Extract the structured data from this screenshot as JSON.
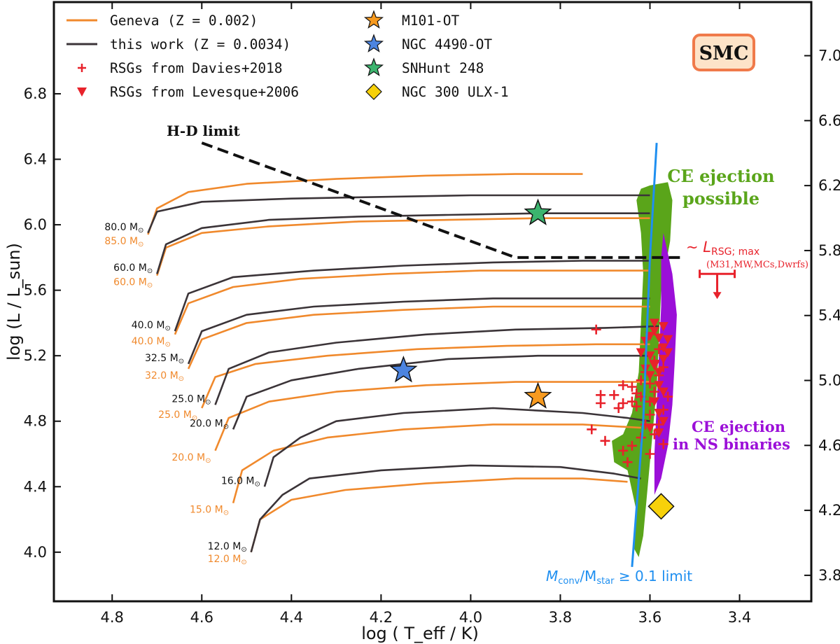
{
  "chart_data": {
    "type": "line",
    "title": "",
    "xlabel": "log ( T_eff / K)",
    "ylabel": "log (L / L_sun)",
    "xlim": [
      4.93,
      3.24
    ],
    "ylim": [
      3.7,
      7.36
    ],
    "xticks": [
      4.8,
      4.6,
      4.4,
      4.2,
      4.0,
      3.8,
      3.6,
      3.4
    ],
    "xtick_labels": [
      "4.8",
      "4.6",
      "4.4",
      "4.2",
      "4.0",
      "3.8",
      "3.6",
      "3.4"
    ],
    "yticks_left": [
      4.0,
      4.4,
      4.8,
      5.2,
      5.6,
      6.0,
      6.4,
      6.8
    ],
    "ytick_labels_left": [
      "4.0",
      "4.4",
      "4.8",
      "5.2",
      "5.6",
      "6.0",
      "6.4",
      "6.8"
    ],
    "yticks_right": [
      3.8,
      4.2,
      4.6,
      5.0,
      5.4,
      5.8,
      6.2,
      6.6,
      7.0
    ],
    "ytick_labels_right": [
      "3.8",
      "4.2",
      "4.6",
      "5.0",
      "5.4",
      "5.8",
      "6.2",
      "6.6",
      "7.0"
    ],
    "galaxy_label": "SMC",
    "colors": {
      "geneva": "#f0892c",
      "this_work": "#3b3438",
      "rsg": "#e8222b",
      "green_region": "#5aa51a",
      "purple_region": "#9b0fd8",
      "blue_limit": "#1f8ff0",
      "m101": "#f79a1f",
      "ngc4490": "#4c84e0",
      "snhunt": "#3cb46e",
      "ngc300": "#f7d10a",
      "smc_box_fill": "#fde3c8",
      "smc_box_stroke": "#f07a4a"
    },
    "legend": [
      {
        "label": "Geneva (Z = 0.002)",
        "marker": "line-orange"
      },
      {
        "label": "this work (Z = 0.0034)",
        "marker": "line-dark"
      },
      {
        "label": "RSGs from Davies+2018",
        "marker": "plus-red"
      },
      {
        "label": "RSGs from Levesque+2006",
        "marker": "triangle-red"
      },
      {
        "label": "M101-OT",
        "marker": "star-orange"
      },
      {
        "label": "NGC 4490-OT",
        "marker": "star-blue"
      },
      {
        "label": "SNHunt 248",
        "marker": "star-green"
      },
      {
        "label": "NGC 300 ULX-1",
        "marker": "diamond-yellow"
      }
    ],
    "transients": [
      {
        "name": "M101-OT",
        "x": 3.85,
        "y": 4.95,
        "marker": "star",
        "color": "#f79a1f"
      },
      {
        "name": "NGC 4490-OT",
        "x": 4.15,
        "y": 5.11,
        "marker": "star",
        "color": "#4c84e0"
      },
      {
        "name": "SNHunt 248",
        "x": 3.85,
        "y": 6.07,
        "marker": "star",
        "color": "#3cb46e"
      },
      {
        "name": "NGC 300 ULX-1",
        "x": 3.575,
        "y": 4.28,
        "marker": "diamond",
        "color": "#f7d10a"
      }
    ],
    "hd_limit": {
      "label": "H-D limit",
      "points": [
        [
          4.6,
          6.5
        ],
        [
          3.9,
          5.8
        ],
        [
          3.53,
          5.8
        ]
      ]
    },
    "lrsg_max": {
      "label": "~ L",
      "subscript": "RSG; max",
      "note": "(M31,MW,MCs,Dwrfs)",
      "x": 3.45,
      "y": 5.7
    },
    "conv_limit": {
      "label_main": "M",
      "sub1": "conv",
      "label_mid": "/M",
      "sub2": "star",
      "label_end": " ≥ 0.1 limit",
      "points": [
        [
          3.64,
          3.91
        ],
        [
          3.615,
          4.8
        ],
        [
          3.6,
          5.8
        ],
        [
          3.585,
          6.5
        ]
      ]
    },
    "region_labels": {
      "green": [
        "CE ejection",
        "possible"
      ],
      "purple": [
        "CE ejection",
        "in NS binaries"
      ]
    },
    "tracks_this_work": [
      {
        "label": "12.0 M",
        "points": [
          [
            4.49,
            4.0
          ],
          [
            4.47,
            4.2
          ],
          [
            4.42,
            4.35
          ],
          [
            4.36,
            4.45
          ],
          [
            4.2,
            4.5
          ],
          [
            4.0,
            4.53
          ],
          [
            3.8,
            4.52
          ],
          [
            3.68,
            4.48
          ],
          [
            3.62,
            4.45
          ]
        ]
      },
      {
        "label": "16.0 M",
        "points": [
          [
            4.46,
            4.4
          ],
          [
            4.44,
            4.58
          ],
          [
            4.38,
            4.7
          ],
          [
            4.3,
            4.8
          ],
          [
            4.15,
            4.85
          ],
          [
            3.95,
            4.88
          ],
          [
            3.75,
            4.85
          ],
          [
            3.65,
            4.82
          ],
          [
            3.6,
            4.8
          ]
        ]
      },
      {
        "label": "20.0 M",
        "points": [
          [
            4.53,
            4.75
          ],
          [
            4.5,
            4.95
          ],
          [
            4.4,
            5.05
          ],
          [
            4.25,
            5.12
          ],
          [
            4.05,
            5.18
          ],
          [
            3.85,
            5.2
          ],
          [
            3.7,
            5.2
          ],
          [
            3.6,
            5.2
          ]
        ]
      },
      {
        "label": "25.0 M",
        "points": [
          [
            4.57,
            4.9
          ],
          [
            4.54,
            5.12
          ],
          [
            4.45,
            5.22
          ],
          [
            4.3,
            5.28
          ],
          [
            4.1,
            5.33
          ],
          [
            3.9,
            5.36
          ],
          [
            3.7,
            5.37
          ],
          [
            3.58,
            5.38
          ]
        ]
      },
      {
        "label": "32.5 M",
        "points": [
          [
            4.63,
            5.15
          ],
          [
            4.6,
            5.35
          ],
          [
            4.5,
            5.45
          ],
          [
            4.35,
            5.5
          ],
          [
            4.15,
            5.53
          ],
          [
            3.95,
            5.55
          ],
          [
            3.75,
            5.55
          ],
          [
            3.6,
            5.55
          ]
        ]
      },
      {
        "label": "40.0 M",
        "points": [
          [
            4.66,
            5.35
          ],
          [
            4.63,
            5.58
          ],
          [
            4.53,
            5.68
          ],
          [
            4.35,
            5.72
          ],
          [
            4.15,
            5.75
          ],
          [
            3.95,
            5.77
          ],
          [
            3.75,
            5.78
          ],
          [
            3.6,
            5.78
          ]
        ]
      },
      {
        "label": "60.0 M",
        "points": [
          [
            4.7,
            5.7
          ],
          [
            4.68,
            5.88
          ],
          [
            4.6,
            5.98
          ],
          [
            4.45,
            6.03
          ],
          [
            4.25,
            6.05
          ],
          [
            4.05,
            6.06
          ],
          [
            3.85,
            6.07
          ],
          [
            3.6,
            6.07
          ]
        ]
      },
      {
        "label": "80.0 M",
        "points": [
          [
            4.72,
            5.95
          ],
          [
            4.7,
            6.08
          ],
          [
            4.6,
            6.14
          ],
          [
            4.4,
            6.16
          ],
          [
            4.2,
            6.17
          ],
          [
            4.0,
            6.18
          ],
          [
            3.8,
            6.18
          ],
          [
            3.6,
            6.18
          ]
        ]
      }
    ],
    "tracks_geneva": [
      {
        "label": "12.0 M",
        "points": [
          [
            4.49,
            4.0
          ],
          [
            4.47,
            4.2
          ],
          [
            4.4,
            4.32
          ],
          [
            4.28,
            4.38
          ],
          [
            4.1,
            4.42
          ],
          [
            3.9,
            4.45
          ],
          [
            3.75,
            4.45
          ],
          [
            3.65,
            4.43
          ]
        ]
      },
      {
        "label": "15.0 M",
        "points": [
          [
            4.53,
            4.3
          ],
          [
            4.51,
            4.5
          ],
          [
            4.44,
            4.62
          ],
          [
            4.32,
            4.7
          ],
          [
            4.15,
            4.75
          ],
          [
            3.95,
            4.78
          ],
          [
            3.75,
            4.78
          ],
          [
            3.62,
            4.76
          ]
        ]
      },
      {
        "label": "20.0 M",
        "points": [
          [
            4.57,
            4.62
          ],
          [
            4.54,
            4.82
          ],
          [
            4.45,
            4.92
          ],
          [
            4.3,
            4.98
          ],
          [
            4.1,
            5.02
          ],
          [
            3.9,
            5.04
          ],
          [
            3.7,
            5.04
          ],
          [
            3.6,
            5.04
          ]
        ]
      },
      {
        "label": "25.0 M",
        "points": [
          [
            4.6,
            4.88
          ],
          [
            4.57,
            5.07
          ],
          [
            4.48,
            5.15
          ],
          [
            4.32,
            5.2
          ],
          [
            4.12,
            5.24
          ],
          [
            3.92,
            5.26
          ],
          [
            3.72,
            5.27
          ],
          [
            3.6,
            5.27
          ]
        ]
      },
      {
        "label": "32.0 M",
        "points": [
          [
            4.63,
            5.12
          ],
          [
            4.6,
            5.3
          ],
          [
            4.5,
            5.4
          ],
          [
            4.35,
            5.45
          ],
          [
            4.15,
            5.48
          ],
          [
            3.95,
            5.5
          ],
          [
            3.75,
            5.5
          ],
          [
            3.6,
            5.5
          ]
        ]
      },
      {
        "label": "40.0 M",
        "points": [
          [
            4.66,
            5.33
          ],
          [
            4.63,
            5.52
          ],
          [
            4.53,
            5.62
          ],
          [
            4.38,
            5.67
          ],
          [
            4.18,
            5.7
          ],
          [
            3.98,
            5.72
          ],
          [
            3.78,
            5.72
          ],
          [
            3.6,
            5.72
          ]
        ]
      },
      {
        "label": "60.0 M",
        "points": [
          [
            4.7,
            5.69
          ],
          [
            4.68,
            5.86
          ],
          [
            4.6,
            5.95
          ],
          [
            4.45,
            5.99
          ],
          [
            4.25,
            6.02
          ],
          [
            4.05,
            6.03
          ],
          [
            3.85,
            6.04
          ],
          [
            3.6,
            6.04
          ]
        ]
      },
      {
        "label": "85.0 M",
        "points": [
          [
            4.72,
            5.94
          ],
          [
            4.7,
            6.1
          ],
          [
            4.63,
            6.2
          ],
          [
            4.5,
            6.25
          ],
          [
            4.3,
            6.28
          ],
          [
            4.1,
            6.3
          ],
          [
            3.9,
            6.31
          ],
          [
            3.75,
            6.31
          ]
        ]
      }
    ],
    "rsgs_davies": [
      [
        3.71,
        4.96
      ],
      [
        3.71,
        4.91
      ],
      [
        3.68,
        4.96
      ],
      [
        3.67,
        4.88
      ],
      [
        3.66,
        4.91
      ],
      [
        3.64,
        5.01
      ],
      [
        3.63,
        4.97
      ],
      [
        3.72,
        5.36
      ],
      [
        3.66,
        5.02
      ],
      [
        3.64,
        4.92
      ],
      [
        3.63,
        4.89
      ],
      [
        3.62,
        4.95
      ],
      [
        3.62,
        5.05
      ],
      [
        3.61,
        5.1
      ],
      [
        3.6,
        5.03
      ],
      [
        3.6,
        4.92
      ],
      [
        3.59,
        4.98
      ],
      [
        3.59,
        5.17
      ],
      [
        3.58,
        5.24
      ],
      [
        3.58,
        5.08
      ],
      [
        3.57,
        5.13
      ],
      [
        3.6,
        4.84
      ],
      [
        3.61,
        4.78
      ],
      [
        3.59,
        4.72
      ],
      [
        3.58,
        4.78
      ],
      [
        3.57,
        4.87
      ],
      [
        3.56,
        4.95
      ],
      [
        3.62,
        4.7
      ],
      [
        3.64,
        4.65
      ],
      [
        3.66,
        4.62
      ],
      [
        3.7,
        4.68
      ],
      [
        3.73,
        4.75
      ],
      [
        3.65,
        4.55
      ],
      [
        3.6,
        4.6
      ],
      [
        3.57,
        4.66
      ]
    ],
    "rsgs_levesque": [
      [
        3.61,
        5.29
      ],
      [
        3.6,
        5.32
      ],
      [
        3.59,
        5.35
      ],
      [
        3.58,
        5.31
      ],
      [
        3.57,
        5.25
      ],
      [
        3.56,
        5.3
      ],
      [
        3.6,
        5.2
      ],
      [
        3.59,
        5.14
      ],
      [
        3.58,
        5.1
      ],
      [
        3.6,
        5.08
      ],
      [
        3.58,
        5.02
      ],
      [
        3.57,
        4.98
      ],
      [
        3.59,
        4.92
      ],
      [
        3.58,
        4.85
      ],
      [
        3.57,
        4.8
      ],
      [
        3.6,
        4.76
      ],
      [
        3.58,
        4.73
      ],
      [
        3.57,
        5.18
      ],
      [
        3.62,
        5.22
      ],
      [
        3.61,
        5.12
      ],
      [
        3.59,
        5.4
      ],
      [
        3.57,
        5.38
      ],
      [
        3.56,
        5.22
      ]
    ]
  }
}
